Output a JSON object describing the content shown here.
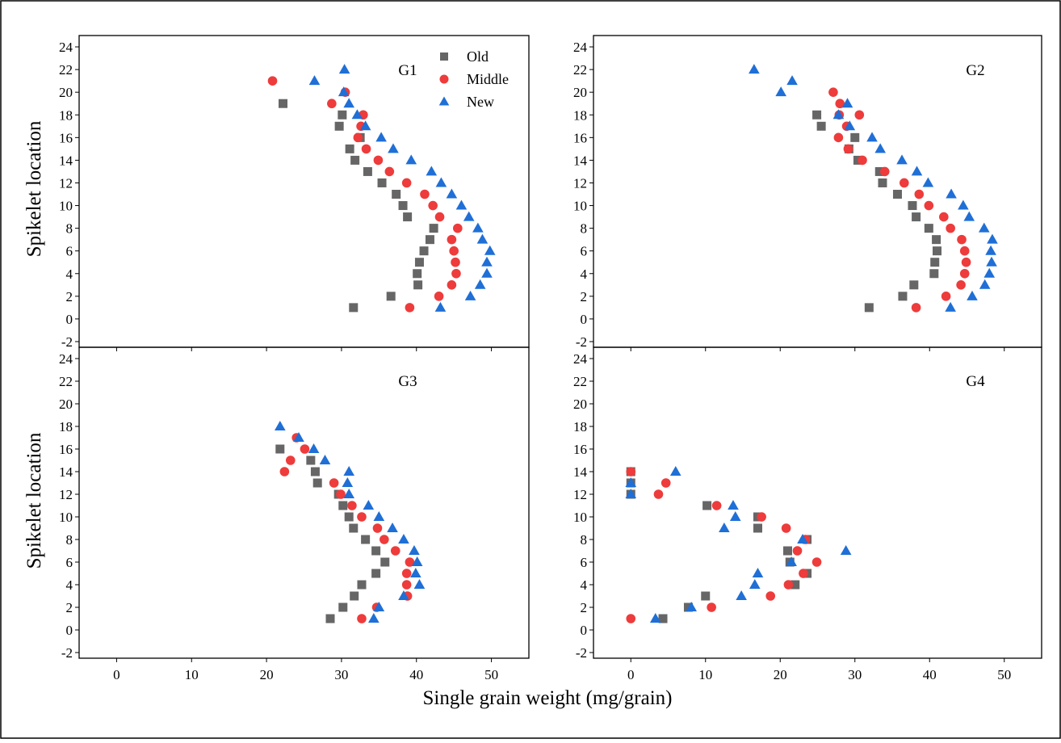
{
  "chart_data": {
    "type": "scatter",
    "xlabel": "Single grain weight (mg/grain)",
    "ylabel": "Spikelet location",
    "xlim": [
      -5,
      55
    ],
    "ylim": [
      -2.5,
      25
    ],
    "x_ticks": [
      "0",
      "10",
      "20",
      "30",
      "40",
      "50"
    ],
    "y_ticks": [
      "-2",
      "0",
      "2",
      "4",
      "6",
      "8",
      "10",
      "12",
      "14",
      "16",
      "18",
      "20",
      "22",
      "24"
    ],
    "legend": {
      "placement": "top-right of G1 panel",
      "entries": [
        {
          "name": "Old",
          "marker": "square",
          "color": "#666666"
        },
        {
          "name": "Middle",
          "marker": "circle",
          "color": "#ee3b3b"
        },
        {
          "name": "New",
          "marker": "triangle",
          "color": "#1f6fd6"
        }
      ]
    },
    "panels": [
      {
        "label": "G1",
        "series": [
          {
            "name": "Old",
            "points": [
              [
                31.6,
                1
              ],
              [
                36.6,
                2
              ],
              [
                40.2,
                3
              ],
              [
                40.1,
                4
              ],
              [
                40.4,
                5
              ],
              [
                41.0,
                6
              ],
              [
                41.8,
                7
              ],
              [
                42.3,
                8
              ],
              [
                38.8,
                9
              ],
              [
                38.2,
                10
              ],
              [
                37.3,
                11
              ],
              [
                35.4,
                12
              ],
              [
                33.5,
                13
              ],
              [
                31.8,
                14
              ],
              [
                31.1,
                15
              ],
              [
                32.5,
                16
              ],
              [
                29.7,
                17
              ],
              [
                30.1,
                18
              ],
              [
                22.2,
                19
              ]
            ]
          },
          {
            "name": "Middle",
            "points": [
              [
                39.1,
                1
              ],
              [
                43.0,
                2
              ],
              [
                44.7,
                3
              ],
              [
                45.3,
                4
              ],
              [
                45.2,
                5
              ],
              [
                45.0,
                6
              ],
              [
                44.7,
                7
              ],
              [
                45.5,
                8
              ],
              [
                43.1,
                9
              ],
              [
                42.2,
                10
              ],
              [
                41.1,
                11
              ],
              [
                38.7,
                12
              ],
              [
                36.4,
                13
              ],
              [
                34.9,
                14
              ],
              [
                33.3,
                15
              ],
              [
                32.2,
                16
              ],
              [
                32.6,
                17
              ],
              [
                32.9,
                18
              ],
              [
                28.7,
                19
              ],
              [
                30.5,
                20
              ],
              [
                20.8,
                21
              ]
            ]
          },
          {
            "name": "New",
            "points": [
              [
                43.2,
                1
              ],
              [
                47.2,
                2
              ],
              [
                48.5,
                3
              ],
              [
                49.4,
                4
              ],
              [
                49.4,
                5
              ],
              [
                49.8,
                6
              ],
              [
                48.8,
                7
              ],
              [
                48.2,
                8
              ],
              [
                47.0,
                9
              ],
              [
                46.0,
                10
              ],
              [
                44.7,
                11
              ],
              [
                43.3,
                12
              ],
              [
                42.0,
                13
              ],
              [
                39.3,
                14
              ],
              [
                36.9,
                15
              ],
              [
                35.3,
                16
              ],
              [
                33.2,
                17
              ],
              [
                32.1,
                18
              ],
              [
                31.0,
                19
              ],
              [
                30.3,
                20
              ],
              [
                26.4,
                21
              ],
              [
                30.4,
                22
              ]
            ]
          }
        ]
      },
      {
        "label": "G2",
        "series": [
          {
            "name": "Old",
            "points": [
              [
                31.9,
                1
              ],
              [
                36.4,
                2
              ],
              [
                37.9,
                3
              ],
              [
                40.6,
                4
              ],
              [
                40.7,
                5
              ],
              [
                41.0,
                6
              ],
              [
                40.9,
                7
              ],
              [
                39.9,
                8
              ],
              [
                38.2,
                9
              ],
              [
                37.7,
                10
              ],
              [
                35.7,
                11
              ],
              [
                33.7,
                12
              ],
              [
                33.3,
                13
              ],
              [
                30.4,
                14
              ],
              [
                29.2,
                15
              ],
              [
                30.0,
                16
              ],
              [
                25.5,
                17
              ],
              [
                24.9,
                18
              ]
            ]
          },
          {
            "name": "Middle",
            "points": [
              [
                38.2,
                1
              ],
              [
                42.2,
                2
              ],
              [
                44.2,
                3
              ],
              [
                44.7,
                4
              ],
              [
                44.9,
                5
              ],
              [
                44.7,
                6
              ],
              [
                44.3,
                7
              ],
              [
                42.8,
                8
              ],
              [
                41.9,
                9
              ],
              [
                39.9,
                10
              ],
              [
                38.6,
                11
              ],
              [
                36.6,
                12
              ],
              [
                34.0,
                13
              ],
              [
                31.0,
                14
              ],
              [
                29.1,
                15
              ],
              [
                27.8,
                16
              ],
              [
                28.9,
                17
              ],
              [
                27.9,
                18
              ],
              [
                30.6,
                18
              ],
              [
                28.0,
                19
              ],
              [
                27.1,
                20
              ]
            ]
          },
          {
            "name": "New",
            "points": [
              [
                42.8,
                1
              ],
              [
                45.7,
                2
              ],
              [
                47.4,
                3
              ],
              [
                48.0,
                4
              ],
              [
                48.3,
                5
              ],
              [
                48.2,
                6
              ],
              [
                48.4,
                7
              ],
              [
                47.3,
                8
              ],
              [
                45.3,
                9
              ],
              [
                44.5,
                10
              ],
              [
                42.9,
                11
              ],
              [
                39.8,
                12
              ],
              [
                38.3,
                13
              ],
              [
                36.3,
                14
              ],
              [
                33.4,
                15
              ],
              [
                32.3,
                16
              ],
              [
                29.3,
                17
              ],
              [
                27.8,
                18
              ],
              [
                29.0,
                19
              ],
              [
                20.1,
                20
              ],
              [
                21.6,
                21
              ],
              [
                16.5,
                22
              ]
            ]
          }
        ]
      },
      {
        "label": "G3",
        "series": [
          {
            "name": "Old",
            "points": [
              [
                28.5,
                1
              ],
              [
                30.2,
                2
              ],
              [
                31.7,
                3
              ],
              [
                32.7,
                4
              ],
              [
                34.6,
                5
              ],
              [
                35.8,
                6
              ],
              [
                34.6,
                7
              ],
              [
                33.2,
                8
              ],
              [
                31.6,
                9
              ],
              [
                31.0,
                10
              ],
              [
                30.2,
                11
              ],
              [
                29.6,
                12
              ],
              [
                26.8,
                13
              ],
              [
                26.5,
                14
              ],
              [
                25.9,
                15
              ],
              [
                21.8,
                16
              ]
            ]
          },
          {
            "name": "Middle",
            "points": [
              [
                32.7,
                1
              ],
              [
                34.7,
                2
              ],
              [
                38.8,
                3
              ],
              [
                38.7,
                4
              ],
              [
                38.7,
                5
              ],
              [
                39.1,
                6
              ],
              [
                37.2,
                7
              ],
              [
                35.7,
                8
              ],
              [
                34.8,
                9
              ],
              [
                32.7,
                10
              ],
              [
                31.4,
                11
              ],
              [
                29.9,
                12
              ],
              [
                29.0,
                13
              ],
              [
                22.4,
                14
              ],
              [
                23.2,
                15
              ],
              [
                25.1,
                16
              ],
              [
                24.0,
                17
              ]
            ]
          },
          {
            "name": "New",
            "points": [
              [
                34.3,
                1
              ],
              [
                35.0,
                2
              ],
              [
                38.3,
                3
              ],
              [
                40.4,
                4
              ],
              [
                39.9,
                5
              ],
              [
                40.1,
                6
              ],
              [
                39.7,
                7
              ],
              [
                38.3,
                8
              ],
              [
                36.8,
                9
              ],
              [
                35.0,
                10
              ],
              [
                33.6,
                11
              ],
              [
                31.0,
                12
              ],
              [
                30.8,
                13
              ],
              [
                31.0,
                14
              ],
              [
                27.8,
                15
              ],
              [
                26.3,
                16
              ],
              [
                24.3,
                17
              ],
              [
                21.8,
                18
              ]
            ]
          }
        ]
      },
      {
        "label": "G4",
        "series": [
          {
            "name": "Old",
            "points": [
              [
                4.3,
                1
              ],
              [
                7.7,
                2
              ],
              [
                10.0,
                3
              ],
              [
                22.0,
                4
              ],
              [
                23.6,
                5
              ],
              [
                21.3,
                6
              ],
              [
                21.0,
                7
              ],
              [
                23.6,
                8
              ],
              [
                17.0,
                9
              ],
              [
                17.0,
                10
              ],
              [
                10.2,
                11
              ],
              [
                0.0,
                12
              ],
              [
                0.0,
                13
              ],
              [
                0.0,
                14
              ]
            ]
          },
          {
            "name": "Middle",
            "points": [
              [
                0.0,
                1
              ],
              [
                10.8,
                2
              ],
              [
                18.7,
                3
              ],
              [
                21.1,
                4
              ],
              [
                23.1,
                5
              ],
              [
                24.9,
                6
              ],
              [
                22.3,
                7
              ],
              [
                23.4,
                8
              ],
              [
                20.8,
                9
              ],
              [
                17.5,
                10
              ],
              [
                11.5,
                11
              ],
              [
                3.7,
                12
              ],
              [
                4.7,
                13
              ],
              [
                0.0,
                14
              ]
            ]
          },
          {
            "name": "New",
            "points": [
              [
                3.3,
                1
              ],
              [
                8.1,
                2
              ],
              [
                14.8,
                3
              ],
              [
                16.6,
                4
              ],
              [
                17.0,
                5
              ],
              [
                21.5,
                6
              ],
              [
                28.8,
                7
              ],
              [
                23.0,
                8
              ],
              [
                12.5,
                9
              ],
              [
                14.0,
                10
              ],
              [
                13.7,
                11
              ],
              [
                0.0,
                12
              ],
              [
                0.0,
                13
              ],
              [
                6.0,
                14
              ]
            ]
          }
        ]
      }
    ]
  }
}
